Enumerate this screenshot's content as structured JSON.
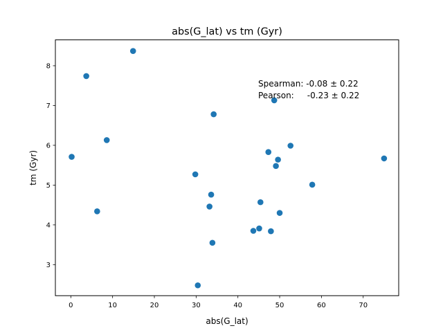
{
  "chart_data": {
    "type": "scatter",
    "title": "abs(G_lat) vs tm (Gyr)",
    "xlabel": "abs(G_lat)",
    "ylabel": "tm (Gyr)",
    "xlim": [
      -3.7,
      78.5
    ],
    "ylim": [
      2.22,
      8.65
    ],
    "xticks": [
      0,
      10,
      20,
      30,
      40,
      50,
      60,
      70
    ],
    "yticks": [
      3,
      4,
      5,
      6,
      7,
      8
    ],
    "grid": false,
    "marker_color": "#1f77b4",
    "annotation": {
      "line1": "Spearman: -0.08 ± 0.22",
      "line2": "Pearson:     -0.23 ± 0.22"
    },
    "series": [
      {
        "points": [
          {
            "x": 0.2,
            "y": 5.71
          },
          {
            "x": 3.7,
            "y": 7.74
          },
          {
            "x": 6.3,
            "y": 4.34
          },
          {
            "x": 8.6,
            "y": 6.13
          },
          {
            "x": 14.9,
            "y": 8.37
          },
          {
            "x": 29.8,
            "y": 5.27
          },
          {
            "x": 30.4,
            "y": 2.48
          },
          {
            "x": 33.2,
            "y": 4.46
          },
          {
            "x": 33.6,
            "y": 4.76
          },
          {
            "x": 33.9,
            "y": 3.55
          },
          {
            "x": 34.2,
            "y": 6.78
          },
          {
            "x": 43.7,
            "y": 3.85
          },
          {
            "x": 45.1,
            "y": 3.91
          },
          {
            "x": 45.4,
            "y": 4.57
          },
          {
            "x": 47.3,
            "y": 5.83
          },
          {
            "x": 47.9,
            "y": 3.84
          },
          {
            "x": 48.7,
            "y": 7.13
          },
          {
            "x": 49.1,
            "y": 5.48
          },
          {
            "x": 49.6,
            "y": 5.64
          },
          {
            "x": 50.0,
            "y": 4.3
          },
          {
            "x": 52.6,
            "y": 5.99
          },
          {
            "x": 57.8,
            "y": 5.01
          },
          {
            "x": 75.0,
            "y": 5.67
          }
        ]
      }
    ]
  }
}
